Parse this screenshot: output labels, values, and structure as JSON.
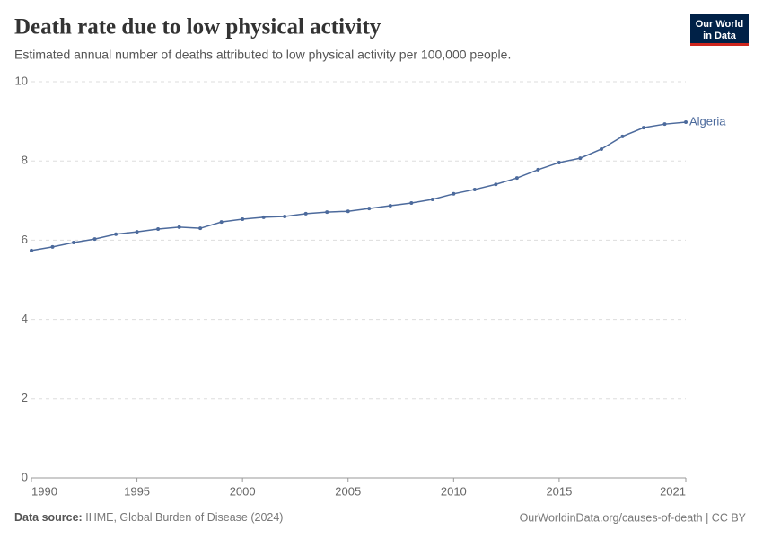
{
  "logo": [
    "Our World",
    "in Data"
  ],
  "footer": {
    "source_label": "Data source:",
    "source": "IHME, Global Burden of Disease (2024)",
    "link": "OurWorldinData.org/causes-of-death | CC BY"
  },
  "chart_data": {
    "type": "line",
    "title": "Death rate due to low physical activity",
    "subtitle": "Estimated annual number of deaths attributed to low physical activity per 100,000 people.",
    "x": [
      1990,
      1991,
      1992,
      1993,
      1994,
      1995,
      1996,
      1997,
      1998,
      1999,
      2000,
      2001,
      2002,
      2003,
      2004,
      2005,
      2006,
      2007,
      2008,
      2009,
      2010,
      2011,
      2012,
      2013,
      2014,
      2015,
      2016,
      2017,
      2018,
      2019,
      2020,
      2021
    ],
    "series": [
      {
        "name": "Algeria",
        "color": "#4c6a9c",
        "values": [
          5.74,
          5.83,
          5.94,
          6.03,
          6.15,
          6.21,
          6.28,
          6.33,
          6.3,
          6.46,
          6.53,
          6.58,
          6.6,
          6.67,
          6.71,
          6.73,
          6.8,
          6.87,
          6.94,
          7.03,
          7.17,
          7.28,
          7.41,
          7.57,
          7.78,
          7.96,
          8.07,
          8.3,
          8.62,
          8.84,
          8.93,
          8.98
        ]
      }
    ],
    "xlim": [
      1990,
      2021
    ],
    "xticks": [
      1990,
      1995,
      2000,
      2005,
      2010,
      2015,
      2021
    ],
    "ylim": [
      0,
      10
    ],
    "yticks": [
      0,
      2,
      4,
      6,
      8,
      10
    ],
    "grid": true
  }
}
